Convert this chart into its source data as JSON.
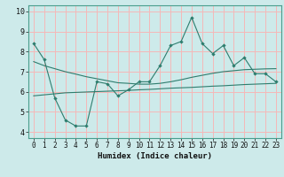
{
  "title": "",
  "xlabel": "Humidex (Indice chaleur)",
  "ylabel": "",
  "x_data": [
    0,
    1,
    2,
    3,
    4,
    5,
    6,
    7,
    8,
    9,
    10,
    11,
    12,
    13,
    14,
    15,
    16,
    17,
    18,
    19,
    20,
    21,
    22,
    23
  ],
  "line1_y": [
    8.4,
    7.6,
    5.7,
    4.6,
    4.3,
    4.3,
    6.5,
    6.4,
    5.8,
    6.1,
    6.5,
    6.5,
    7.3,
    8.3,
    8.5,
    9.7,
    8.4,
    7.9,
    8.3,
    7.3,
    7.7,
    6.9,
    6.9,
    6.5
  ],
  "line2_y": [
    5.8,
    5.85,
    5.9,
    5.95,
    5.97,
    5.99,
    6.01,
    6.03,
    6.05,
    6.07,
    6.1,
    6.12,
    6.15,
    6.18,
    6.2,
    6.22,
    6.25,
    6.28,
    6.3,
    6.33,
    6.36,
    6.38,
    6.4,
    6.42
  ],
  "line3_y": [
    7.5,
    7.3,
    7.15,
    7.0,
    6.88,
    6.75,
    6.65,
    6.55,
    6.45,
    6.42,
    6.38,
    6.38,
    6.42,
    6.5,
    6.6,
    6.72,
    6.82,
    6.92,
    7.0,
    7.05,
    7.1,
    7.12,
    7.14,
    7.15
  ],
  "line_color": "#2e7d6e",
  "bg_color": "#cdeaea",
  "grid_color": "#f5b8b8",
  "xlim": [
    -0.5,
    23.5
  ],
  "ylim": [
    3.7,
    10.3
  ],
  "yticks": [
    4,
    5,
    6,
    7,
    8,
    9,
    10
  ],
  "xticks": [
    0,
    1,
    2,
    3,
    4,
    5,
    6,
    7,
    8,
    9,
    10,
    11,
    12,
    13,
    14,
    15,
    16,
    17,
    18,
    19,
    20,
    21,
    22,
    23
  ]
}
